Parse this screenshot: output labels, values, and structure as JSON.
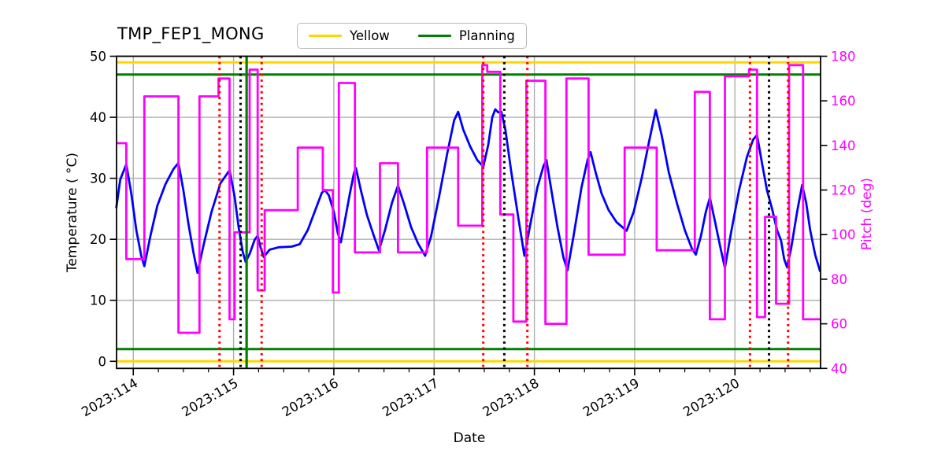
{
  "legend": {
    "items": [
      {
        "label": "Yellow",
        "color": "#FFD700"
      },
      {
        "label": "Planning",
        "color": "#008000"
      }
    ]
  },
  "chart_data": {
    "type": "line",
    "title": "TMP_FEP1_MONG",
    "xlabel": "Date",
    "ylabel_left": "Temperature ( °C)",
    "ylabel_right": "Pitch (deg)",
    "grid": true,
    "legend_position": "top-center",
    "xlim": [
      113.833,
      120.854
    ],
    "x_ticks": [
      114,
      115,
      116,
      117,
      118,
      119,
      120
    ],
    "x_tick_labels": [
      "2023:114",
      "2023:115",
      "2023:116",
      "2023:117",
      "2023:118",
      "2023:119",
      "2023:120"
    ],
    "x_minor_step": 0.25,
    "ylim_left": [
      0,
      50
    ],
    "ylim_left_display": [
      -1.16,
      50
    ],
    "yticks_left": [
      0,
      10,
      20,
      30,
      40,
      50
    ],
    "ylim_right": [
      40,
      180
    ],
    "yticks_right": [
      40,
      60,
      80,
      100,
      120,
      140,
      160,
      180
    ],
    "axis_colors": {
      "left": "#000000",
      "right": "#FF00FF"
    },
    "grid_color": "#B0B0B0",
    "hlines": [
      {
        "label": "Yellow",
        "y": 49,
        "color": "#FFD700"
      },
      {
        "label": "Yellow",
        "y": 0,
        "color": "#FFD700"
      },
      {
        "label": "Planning",
        "y": 47,
        "color": "#008000"
      },
      {
        "label": "Planning",
        "y": 2,
        "color": "#008000"
      }
    ],
    "vlines": [
      {
        "x": 114.86,
        "color": "#FF0000",
        "style": "dotted"
      },
      {
        "x": 115.07,
        "color": "#000000",
        "style": "dotted"
      },
      {
        "x": 115.13,
        "color": "#008000",
        "style": "solid"
      },
      {
        "x": 115.28,
        "color": "#FF0000",
        "style": "dotted"
      },
      {
        "x": 117.49,
        "color": "#FF0000",
        "style": "dotted"
      },
      {
        "x": 117.7,
        "color": "#000000",
        "style": "dotted"
      },
      {
        "x": 117.93,
        "color": "#FF0000",
        "style": "dotted"
      },
      {
        "x": 120.15,
        "color": "#FF0000",
        "style": "dotted"
      },
      {
        "x": 120.34,
        "color": "#000000",
        "style": "dotted"
      },
      {
        "x": 120.53,
        "color": "#FF0000",
        "style": "dotted"
      }
    ],
    "series": [
      {
        "name": "temperature",
        "axis": "left",
        "color": "#0000FF",
        "mode": "line",
        "points": [
          [
            113.83,
            25.1
          ],
          [
            113.87,
            29.8
          ],
          [
            113.93,
            32.3
          ],
          [
            113.98,
            27.5
          ],
          [
            114.03,
            21.5
          ],
          [
            114.08,
            17.2
          ],
          [
            114.11,
            15.6
          ],
          [
            114.17,
            20.5
          ],
          [
            114.24,
            25.5
          ],
          [
            114.32,
            29.0
          ],
          [
            114.4,
            31.5
          ],
          [
            114.45,
            32.5
          ],
          [
            114.5,
            28.0
          ],
          [
            114.55,
            22.5
          ],
          [
            114.6,
            17.8
          ],
          [
            114.64,
            14.5
          ],
          [
            114.7,
            19.0
          ],
          [
            114.78,
            24.5
          ],
          [
            114.87,
            29.2
          ],
          [
            114.96,
            31.3
          ],
          [
            115.01,
            27.0
          ],
          [
            115.05,
            22.0
          ],
          [
            115.09,
            18.0
          ],
          [
            115.12,
            16.3
          ],
          [
            115.16,
            17.6
          ],
          [
            115.21,
            19.9
          ],
          [
            115.24,
            20.6
          ],
          [
            115.27,
            18.6
          ],
          [
            115.3,
            17.1
          ],
          [
            115.36,
            18.3
          ],
          [
            115.45,
            18.7
          ],
          [
            115.58,
            18.8
          ],
          [
            115.66,
            19.2
          ],
          [
            115.74,
            21.5
          ],
          [
            115.82,
            25.0
          ],
          [
            115.88,
            27.6
          ],
          [
            115.91,
            28.1
          ],
          [
            115.95,
            27.2
          ],
          [
            116.0,
            24.5
          ],
          [
            116.04,
            21.0
          ],
          [
            116.07,
            19.5
          ],
          [
            116.11,
            23.0
          ],
          [
            116.16,
            27.5
          ],
          [
            116.2,
            30.8
          ],
          [
            116.22,
            31.7
          ],
          [
            116.27,
            28.0
          ],
          [
            116.33,
            24.0
          ],
          [
            116.4,
            20.5
          ],
          [
            116.45,
            18.2
          ],
          [
            116.51,
            21.5
          ],
          [
            116.58,
            26.0
          ],
          [
            116.64,
            28.8
          ],
          [
            116.7,
            25.8
          ],
          [
            116.77,
            22.0
          ],
          [
            116.84,
            19.3
          ],
          [
            116.91,
            17.3
          ],
          [
            116.97,
            20.5
          ],
          [
            117.05,
            27.0
          ],
          [
            117.13,
            34.0
          ],
          [
            117.2,
            39.5
          ],
          [
            117.24,
            40.9
          ],
          [
            117.29,
            38.0
          ],
          [
            117.36,
            35.2
          ],
          [
            117.43,
            33.0
          ],
          [
            117.49,
            31.9
          ],
          [
            117.54,
            35.5
          ],
          [
            117.58,
            40.0
          ],
          [
            117.61,
            41.3
          ],
          [
            117.64,
            40.8
          ],
          [
            117.67,
            40.9
          ],
          [
            117.71,
            38.0
          ],
          [
            117.77,
            31.0
          ],
          [
            117.84,
            23.5
          ],
          [
            117.9,
            17.3
          ],
          [
            117.96,
            22.5
          ],
          [
            118.03,
            28.5
          ],
          [
            118.09,
            32.0
          ],
          [
            118.12,
            33.0
          ],
          [
            118.17,
            28.0
          ],
          [
            118.23,
            22.0
          ],
          [
            118.29,
            17.0
          ],
          [
            118.33,
            14.9
          ],
          [
            118.39,
            20.5
          ],
          [
            118.47,
            28.5
          ],
          [
            118.53,
            33.0
          ],
          [
            118.56,
            34.3
          ],
          [
            118.61,
            31.0
          ],
          [
            118.67,
            27.5
          ],
          [
            118.74,
            24.8
          ],
          [
            118.82,
            22.8
          ],
          [
            118.92,
            21.4
          ],
          [
            118.99,
            24.5
          ],
          [
            119.07,
            30.0
          ],
          [
            119.15,
            36.5
          ],
          [
            119.21,
            41.2
          ],
          [
            119.27,
            37.0
          ],
          [
            119.34,
            31.0
          ],
          [
            119.42,
            26.0
          ],
          [
            119.5,
            21.5
          ],
          [
            119.57,
            18.5
          ],
          [
            119.61,
            17.5
          ],
          [
            119.66,
            20.5
          ],
          [
            119.71,
            24.5
          ],
          [
            119.75,
            26.8
          ],
          [
            119.8,
            23.0
          ],
          [
            119.85,
            19.0
          ],
          [
            119.9,
            15.3
          ],
          [
            119.96,
            21.0
          ],
          [
            120.04,
            28.0
          ],
          [
            120.12,
            33.5
          ],
          [
            120.18,
            36.3
          ],
          [
            120.22,
            37.1
          ],
          [
            120.27,
            32.5
          ],
          [
            120.32,
            28.0
          ],
          [
            120.37,
            25.0
          ],
          [
            120.42,
            21.5
          ],
          [
            120.46,
            19.8
          ],
          [
            120.49,
            16.8
          ],
          [
            120.52,
            15.4
          ],
          [
            120.56,
            18.5
          ],
          [
            120.62,
            24.5
          ],
          [
            120.67,
            28.9
          ],
          [
            120.71,
            26.0
          ],
          [
            120.75,
            21.5
          ],
          [
            120.8,
            17.5
          ],
          [
            120.85,
            14.7
          ]
        ]
      },
      {
        "name": "pitch",
        "axis": "right",
        "color": "#FF00FF",
        "mode": "step",
        "points": [
          [
            113.83,
            141
          ],
          [
            113.93,
            89
          ],
          [
            114.11,
            162
          ],
          [
            114.45,
            56
          ],
          [
            114.66,
            162
          ],
          [
            114.85,
            170
          ],
          [
            114.96,
            62
          ],
          [
            115.01,
            101
          ],
          [
            115.16,
            174
          ],
          [
            115.24,
            75
          ],
          [
            115.31,
            111
          ],
          [
            115.64,
            139
          ],
          [
            115.89,
            120
          ],
          [
            115.99,
            74
          ],
          [
            116.05,
            168
          ],
          [
            116.21,
            92
          ],
          [
            116.46,
            132
          ],
          [
            116.64,
            92
          ],
          [
            116.93,
            139
          ],
          [
            117.24,
            104
          ],
          [
            117.48,
            176
          ],
          [
            117.53,
            173
          ],
          [
            117.66,
            109
          ],
          [
            117.79,
            61
          ],
          [
            117.92,
            169
          ],
          [
            118.11,
            60
          ],
          [
            118.32,
            170
          ],
          [
            118.54,
            91
          ],
          [
            118.9,
            139
          ],
          [
            119.22,
            93
          ],
          [
            119.6,
            164
          ],
          [
            119.75,
            62
          ],
          [
            119.9,
            171
          ],
          [
            120.14,
            174
          ],
          [
            120.22,
            63
          ],
          [
            120.3,
            108
          ],
          [
            120.41,
            69
          ],
          [
            120.54,
            176
          ],
          [
            120.68,
            62
          ]
        ]
      }
    ]
  }
}
